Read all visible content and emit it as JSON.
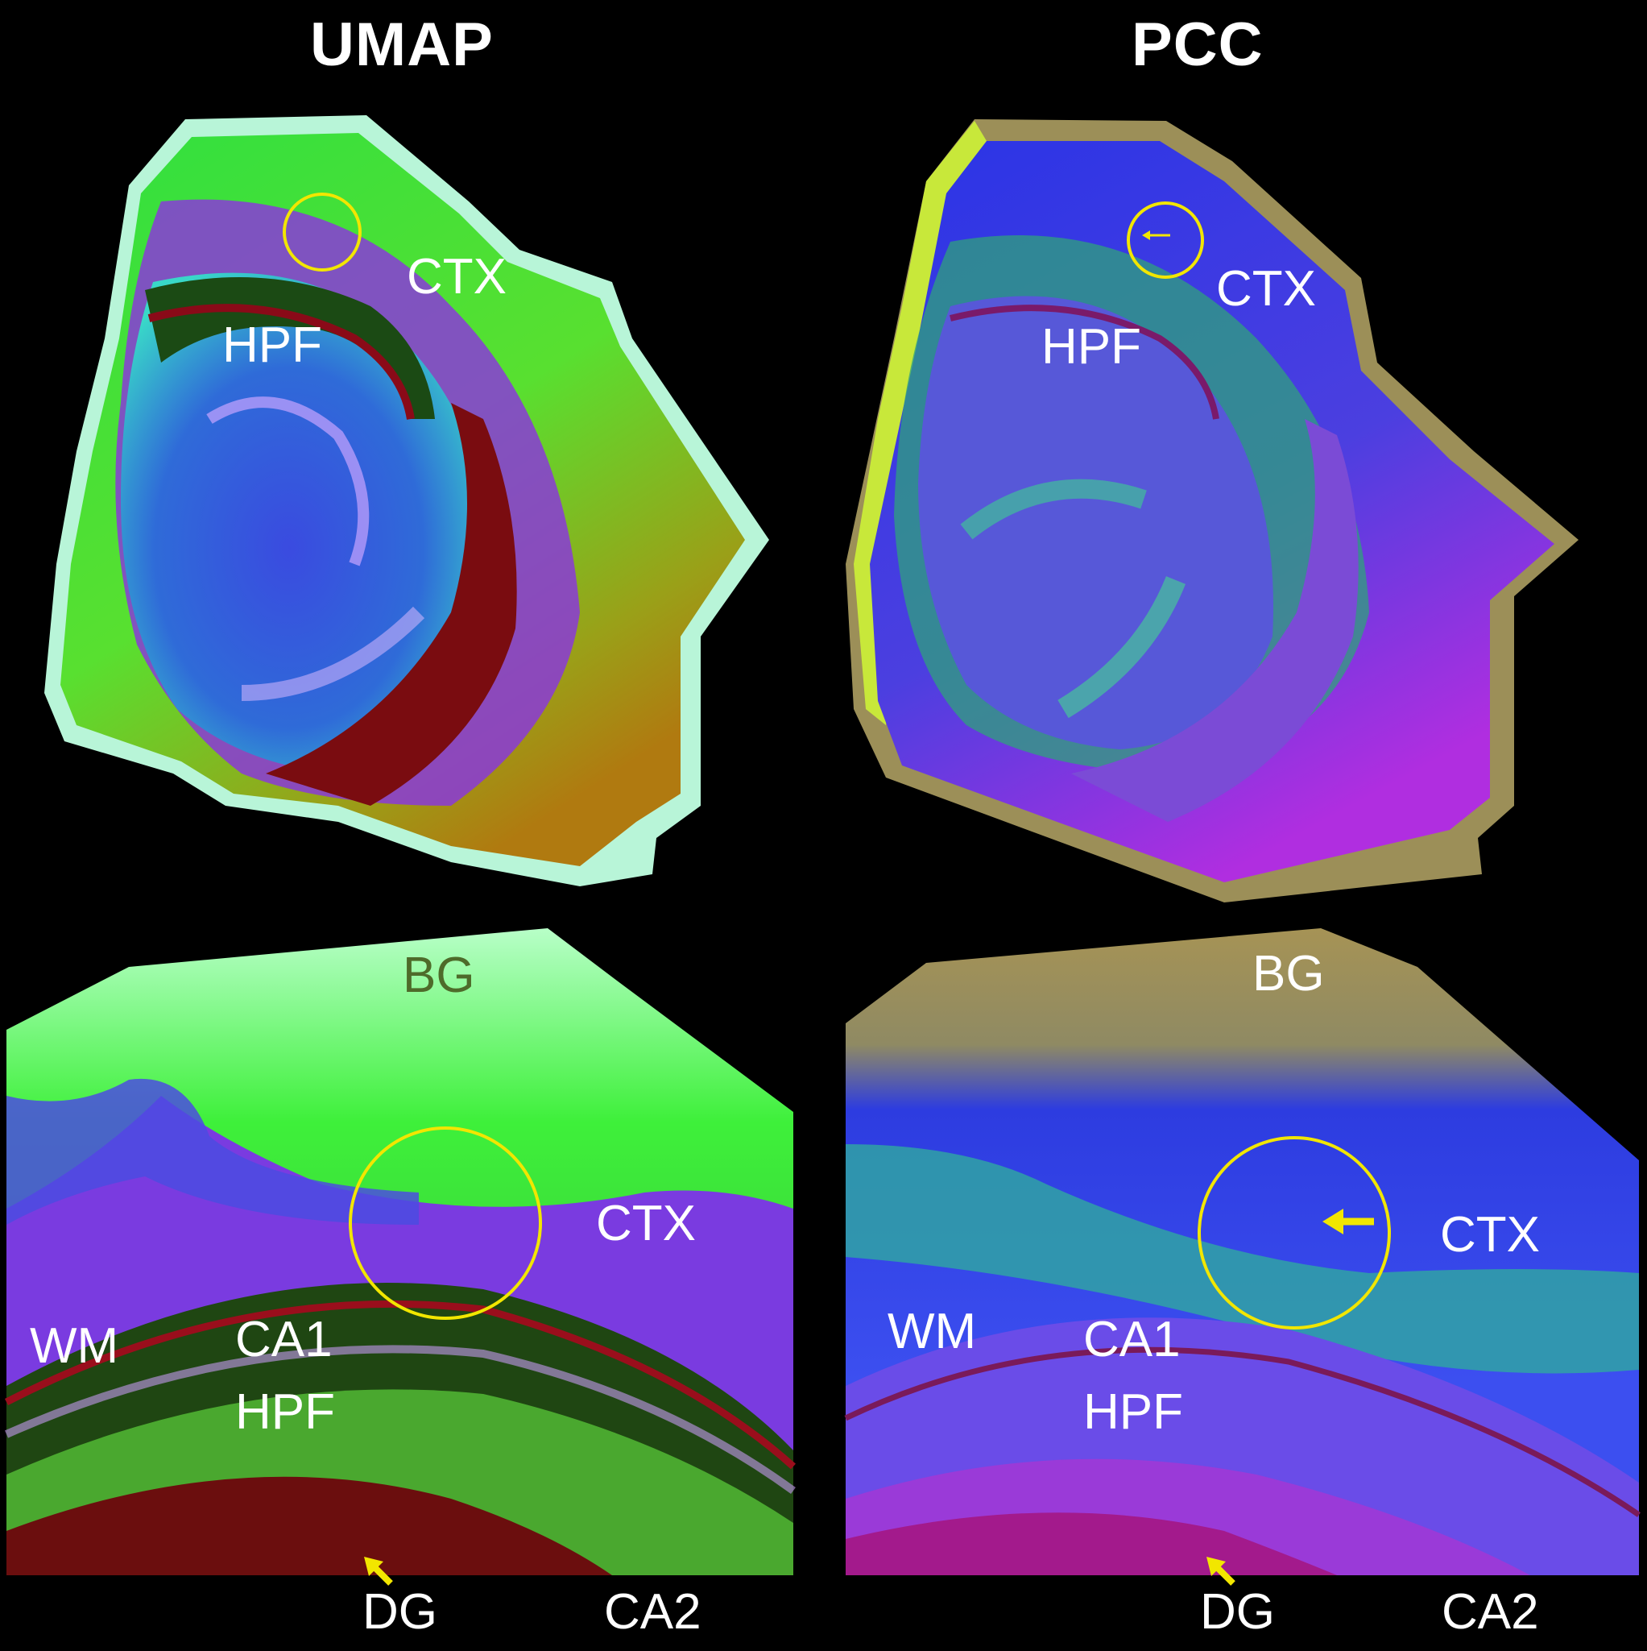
{
  "panels": {
    "umap": {
      "title": "UMAP",
      "overview_labels": {
        "ctx": "CTX",
        "hpf": "HPF"
      },
      "zoom_labels": {
        "bg": "BG",
        "ctx": "CTX",
        "wm": "WM",
        "ca1": "CA1",
        "hpf": "HPF",
        "dg": "DG",
        "ca2": "CA2"
      }
    },
    "pcc": {
      "title": "PCC",
      "overview_labels": {
        "ctx": "CTX",
        "hpf": "HPF"
      },
      "zoom_labels": {
        "bg": "BG",
        "ctx": "CTX",
        "wm": "WM",
        "ca1": "CA1",
        "hpf": "HPF",
        "dg": "DG",
        "ca2": "CA2"
      }
    }
  },
  "colors": {
    "background": "#000000",
    "annotation": "#f2e600",
    "label": "#ffffff",
    "umap_bg_label": "#4e6b2a"
  }
}
